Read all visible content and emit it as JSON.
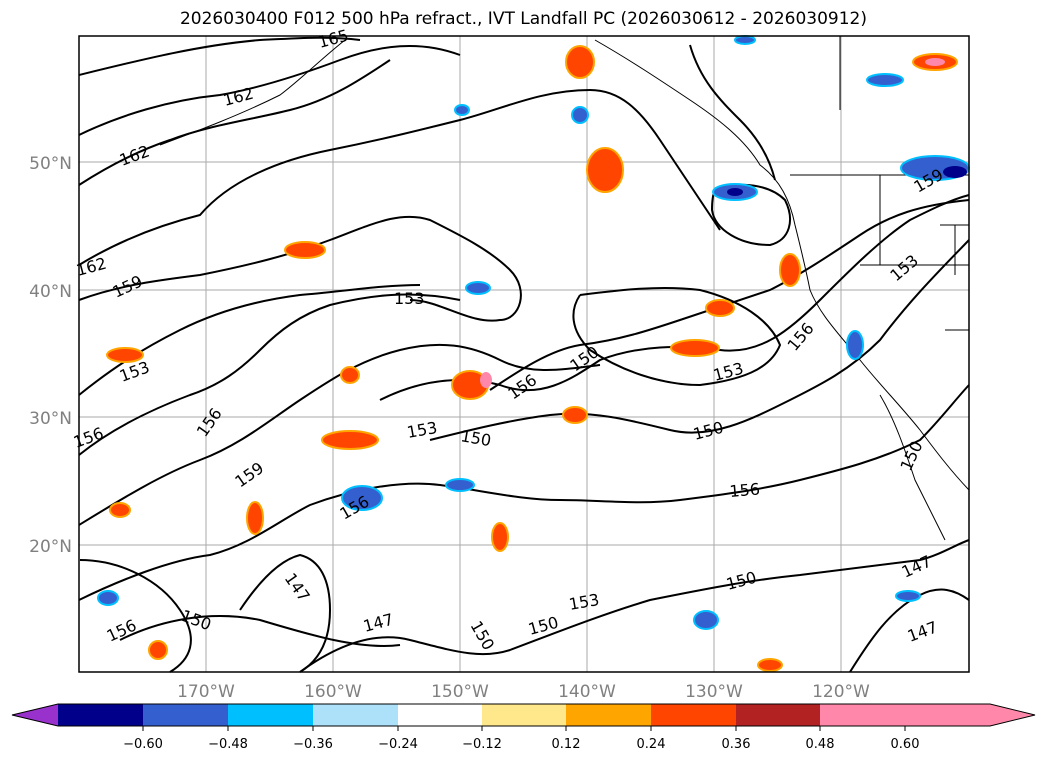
{
  "title": "2026030400 F012 500 hPa refract., IVT Landfall PC (2026030612 - 2026030912)",
  "lat_labels": [
    "50°N",
    "40°N",
    "30°N",
    "20°N"
  ],
  "lon_labels": [
    "170°W",
    "160°W",
    "150°W",
    "140°W",
    "130°W",
    "120°W"
  ],
  "contour_labels": [
    "165",
    "162",
    "162",
    "162",
    "159",
    "159",
    "153",
    "156",
    "156",
    "153",
    "150",
    "156",
    "150",
    "153",
    "150",
    "159",
    "153",
    "150",
    "156",
    "147",
    "150",
    "156",
    "147",
    "153",
    "150",
    "150",
    "147",
    "147",
    "156",
    "159",
    "153",
    "156",
    "150"
  ],
  "colorbar": {
    "tick_labels": [
      "−0.60",
      "−0.48",
      "−0.36",
      "−0.24",
      "−0.12",
      "0.12",
      "0.24",
      "0.36",
      "0.48",
      "0.60"
    ],
    "colors": [
      "#9932cc",
      "#00008b",
      "#3460cf",
      "#00bfff",
      "#ade1fa",
      "#ffffff",
      "#ffe88c",
      "#ffa500",
      "#ff4500",
      "#b22222",
      "#ff88aa"
    ]
  }
}
